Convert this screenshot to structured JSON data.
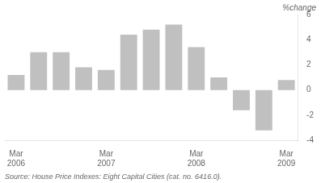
{
  "chart_data": {
    "type": "bar",
    "ylabel": "%change",
    "annotations": [
      "Source: House Price Indexes: Eight Capital Cities (cat. no. 6416.0)."
    ],
    "categories": [
      "Mar\n2006",
      null,
      null,
      null,
      "Mar\n2007",
      null,
      null,
      null,
      "Mar\n2008",
      null,
      null,
      null,
      "Mar\n2009"
    ],
    "values": [
      1.2,
      3.0,
      3.0,
      1.8,
      1.6,
      4.4,
      4.8,
      5.2,
      3.4,
      1.0,
      -1.6,
      -3.2,
      0.8
    ],
    "color": "#c0c0c0",
    "ylim": [
      -4,
      6
    ],
    "yticks": [
      -4,
      -2,
      0,
      2,
      4,
      6
    ],
    "grid": false
  }
}
